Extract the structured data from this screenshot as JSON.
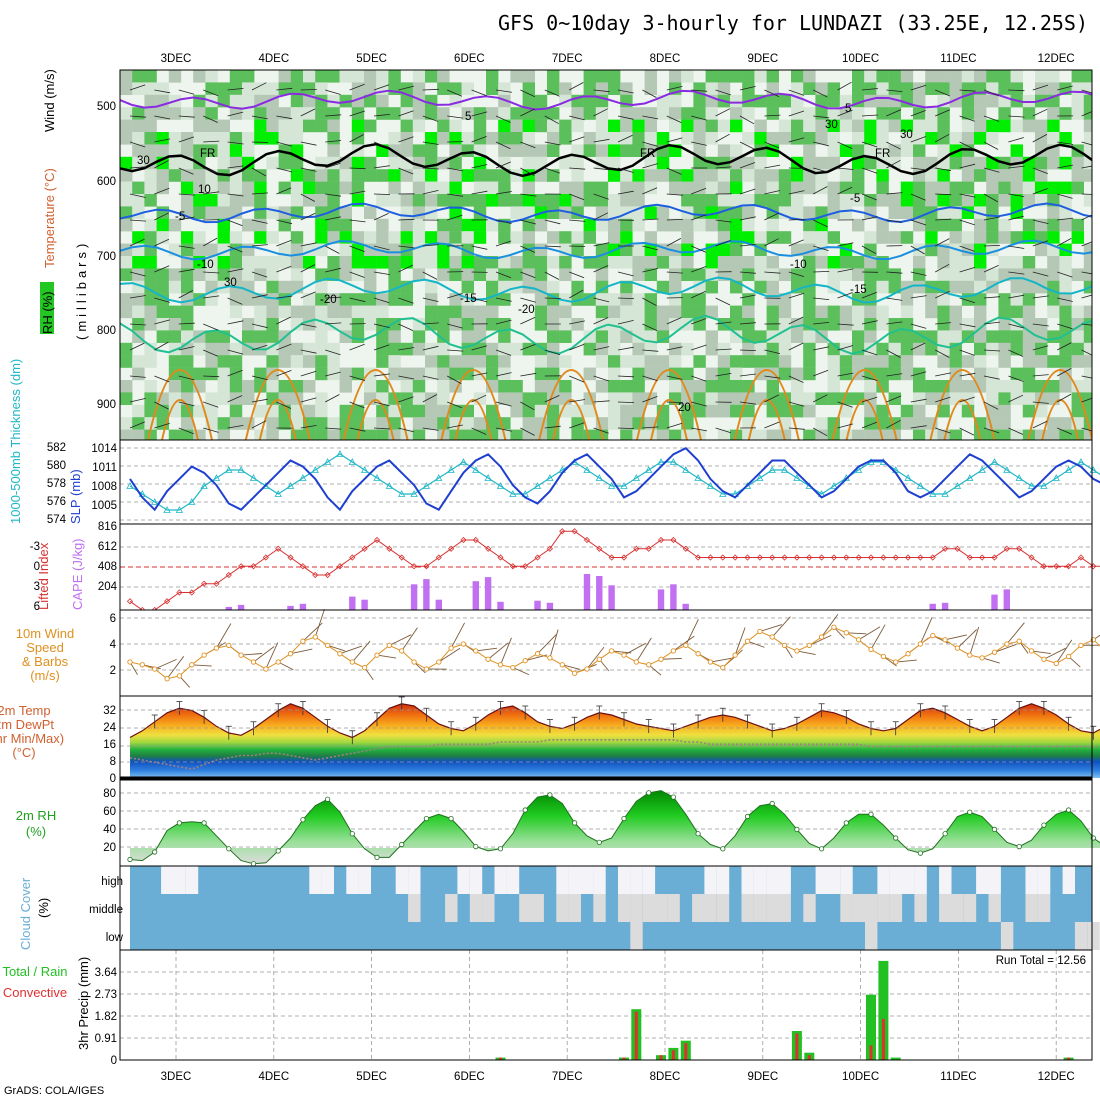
{
  "title": "GFS 0~10day 3-hourly for LUNDAZI (33.25E, 12.25S)",
  "credit": "GrADS: COLA/IGES",
  "run_total": "Run Total = 12.56",
  "dates": [
    "3DEC",
    "4DEC",
    "5DEC",
    "6DEC",
    "7DEC",
    "8DEC",
    "9DEC",
    "10DEC",
    "11DEC",
    "12DEC"
  ],
  "colors": {
    "rh_green": "#22c722",
    "rh_bright": "#00ee00",
    "temp_purple": "#8a2be2",
    "temp_blue": "#1e5fe0",
    "temp_cyan": "#15b5c8",
    "temp_orange": "#e08a1e",
    "slp": "#1e3fd0",
    "thickness": "#20b8c8",
    "lifted_index": "#d83030",
    "cape": "#c070f0",
    "wind10": "#e09020",
    "cloud_blue": "#6aaed6",
    "cloud_white": "#f4f4f8",
    "cloud_gray": "#dcdcdc",
    "precip_total": "#22c022",
    "precip_conv": "#e03030"
  },
  "panels": {
    "upper": {
      "ylabel_parts": [
        "RH (%)",
        "Temperature (°C)",
        "Wind (m/s)"
      ],
      "yaxis_label": "(millibars)",
      "yticks": [
        "500",
        "600",
        "700",
        "800",
        "900"
      ],
      "contour_labels": [
        "5",
        "5",
        "FR",
        "FR",
        "FR",
        "-5",
        "-5",
        "-10",
        "-10",
        "-15",
        "-15",
        "-20",
        "-20",
        "20",
        "30",
        "30",
        "30",
        "30",
        "10"
      ]
    },
    "slp_thick": {
      "ylabel_left": "1000-500mb Thickness (dm)",
      "ylabel_right": "SLP (mb)",
      "yticks_left": [
        "582",
        "580",
        "578",
        "576",
        "574"
      ],
      "yticks_right": [
        "1014",
        "1011",
        "1008",
        "1005"
      ]
    },
    "cape_li": {
      "ylabel_left": "Lifted Index",
      "ylabel_right": "CAPE (J/kg)",
      "yticks_left": [
        "-3",
        "0",
        "3",
        "6"
      ],
      "yticks_right": [
        "816",
        "612",
        "408",
        "204"
      ]
    },
    "wind10": {
      "ylabel_lines": [
        "10m Wind",
        "Speed",
        "& Barbs",
        "(m/s)"
      ],
      "yticks": [
        "6",
        "4",
        "2"
      ]
    },
    "temp2m": {
      "ylabel_lines": [
        "2m Temp",
        "2m DewPt",
        "(6hr Min/Max)",
        "(°C)"
      ],
      "yticks": [
        "32",
        "24",
        "16",
        "8",
        "0"
      ]
    },
    "rh2m": {
      "ylabel_lines": [
        "2m RH",
        "(%)"
      ],
      "yticks": [
        "80",
        "60",
        "40",
        "20"
      ]
    },
    "cloud": {
      "ylabel_lines": [
        "Cloud Cover",
        "(%)"
      ],
      "levels": [
        "high",
        "middle",
        "low"
      ]
    },
    "precip": {
      "ylabel_lines": [
        "Total / Rain",
        "Convective",
        "3hr Precip (mm)"
      ],
      "yticks": [
        "3.64",
        "2.73",
        "1.82",
        "0.91",
        "0"
      ]
    }
  },
  "chart_data": {
    "type": "line",
    "x_times_3h": "2 Dec 12Z to 12 Dec 09Z, 3-hourly (81 steps)",
    "slp_mb": [
      1010,
      1007,
      1005,
      1008,
      1010,
      1012,
      1011,
      1009,
      1006,
      1005,
      1007,
      1009,
      1011,
      1013,
      1012,
      1010,
      1007,
      1005,
      1008,
      1010,
      1012,
      1013,
      1011,
      1009,
      1006,
      1005,
      1008,
      1011,
      1013,
      1014,
      1012,
      1009,
      1007,
      1006,
      1008,
      1011,
      1013,
      1014,
      1012,
      1010,
      1007,
      1008,
      1010,
      1012,
      1014,
      1015,
      1013,
      1010,
      1008,
      1007,
      1009,
      1011,
      1013,
      1013,
      1011,
      1009,
      1007,
      1008,
      1010,
      1012,
      1013,
      1013,
      1011,
      1008,
      1007,
      1008,
      1010,
      1012,
      1014,
      1013,
      1011,
      1009,
      1007,
      1008,
      1010,
      1012,
      1013,
      1012,
      1010,
      1009,
      1010
    ],
    "thickness_dm": [
      578,
      577,
      576,
      575,
      575,
      576,
      578,
      579,
      580,
      580,
      579,
      578,
      577,
      578,
      579,
      580,
      581,
      582,
      581,
      580,
      579,
      578,
      577,
      577,
      578,
      579,
      580,
      581,
      580,
      579,
      578,
      577,
      577,
      578,
      579,
      580,
      581,
      580,
      579,
      578,
      578,
      579,
      580,
      581,
      581,
      580,
      579,
      578,
      577,
      577,
      578,
      579,
      580,
      580,
      579,
      578,
      577,
      578,
      579,
      580,
      581,
      581,
      580,
      579,
      578,
      577,
      577,
      578,
      579,
      580,
      581,
      580,
      579,
      578,
      578,
      579,
      580,
      581,
      580,
      579,
      579
    ],
    "cape_jkg": [
      0,
      0,
      0,
      0,
      0,
      0,
      0,
      0,
      30,
      50,
      0,
      0,
      0,
      40,
      60,
      0,
      0,
      0,
      130,
      100,
      0,
      0,
      0,
      250,
      300,
      100,
      0,
      0,
      280,
      320,
      80,
      0,
      0,
      90,
      70,
      0,
      0,
      350,
      330,
      240,
      0,
      0,
      0,
      200,
      250,
      60,
      0,
      0,
      0,
      0,
      0,
      0,
      0,
      0,
      0,
      0,
      0,
      0,
      0,
      0,
      0,
      0,
      0,
      0,
      0,
      60,
      70,
      0,
      0,
      0,
      150,
      200,
      0,
      0,
      0,
      0,
      0,
      0,
      0,
      0,
      100
    ],
    "lifted_index": [
      5,
      6,
      6,
      5,
      4,
      4,
      3,
      3,
      2,
      1,
      1,
      0,
      -1,
      0,
      1,
      2,
      2,
      1,
      0,
      -1,
      -2,
      -1,
      0,
      1,
      1,
      0,
      -1,
      -2,
      -2,
      -1,
      0,
      1,
      1,
      0,
      -1,
      -3,
      -3,
      -2,
      -1,
      0,
      0,
      -1,
      -1,
      -2,
      -2,
      -1,
      0,
      0,
      0,
      0,
      0,
      0,
      0,
      0,
      0,
      0,
      0,
      0,
      0,
      0,
      0,
      0,
      0,
      0,
      0,
      0,
      -1,
      -1,
      0,
      0,
      0,
      -1,
      -1,
      0,
      1,
      1,
      1,
      0,
      1,
      1,
      -1
    ],
    "wind10_ms": [
      3,
      2.8,
      2.5,
      1.8,
      2,
      2.8,
      3.5,
      4,
      4.2,
      3.5,
      3,
      2.5,
      3,
      3.6,
      4.5,
      4.8,
      4.2,
      3.6,
      3,
      2.6,
      3.5,
      4.2,
      3.8,
      3,
      2.5,
      3,
      4,
      4.3,
      3.8,
      3.2,
      2.8,
      2.6,
      3.1,
      3.6,
      3.3,
      2.8,
      2.2,
      2.5,
      3.2,
      3.8,
      3.5,
      3,
      2.8,
      3.2,
      3.8,
      4.2,
      3.6,
      3,
      2.6,
      3.5,
      4.5,
      5.2,
      4.8,
      4.2,
      3.8,
      4.2,
      4.8,
      5.5,
      5.1,
      4.6,
      3.9,
      3.4,
      3,
      3.6,
      4.3,
      4.9,
      4.6,
      4,
      3.5,
      3.3,
      3.7,
      4.3,
      4.5,
      3.8,
      3.2,
      2.9,
      3.4,
      4.2,
      4.6,
      3.8,
      3.1
    ],
    "temp2m_c": [
      18,
      21,
      25,
      29,
      31,
      30,
      27,
      23,
      20,
      19,
      22,
      26,
      30,
      33,
      31,
      27,
      23,
      20,
      18,
      21,
      26,
      31,
      33,
      32,
      28,
      24,
      22,
      21,
      24,
      28,
      31,
      32,
      29,
      25,
      23,
      22,
      24,
      27,
      29,
      28,
      26,
      24,
      23,
      22,
      21,
      23,
      25,
      27,
      28,
      27,
      25,
      23,
      21,
      22,
      24,
      27,
      30,
      29,
      27,
      24,
      22,
      21,
      22,
      26,
      30,
      31,
      29,
      26,
      23,
      21,
      23,
      27,
      31,
      33,
      31,
      28,
      24,
      21,
      20,
      23,
      27
    ],
    "dewpt2m_c": [
      9,
      8,
      7,
      6,
      5,
      4,
      6,
      8,
      9,
      10,
      10,
      11,
      11,
      10,
      9,
      8,
      9,
      10,
      11,
      12,
      13,
      14,
      14,
      14,
      14,
      15,
      15,
      15,
      15,
      15,
      16,
      16,
      16,
      16,
      17,
      17,
      17,
      17,
      17,
      17,
      17,
      17,
      17,
      17,
      17,
      16,
      16,
      15,
      15,
      15,
      15,
      15,
      15,
      15,
      15,
      15,
      15,
      15,
      15,
      15,
      14,
      14,
      14,
      14,
      14,
      14,
      14,
      14,
      14,
      14,
      14,
      14,
      14,
      14,
      14,
      14,
      14,
      14,
      14,
      14,
      14
    ],
    "rh2m_pct": [
      18,
      17,
      25,
      45,
      52,
      53,
      52,
      40,
      28,
      17,
      14,
      15,
      26,
      38,
      55,
      68,
      74,
      62,
      42,
      28,
      20,
      20,
      32,
      44,
      56,
      60,
      56,
      44,
      30,
      26,
      28,
      42,
      64,
      76,
      78,
      70,
      52,
      40,
      34,
      38,
      56,
      72,
      80,
      82,
      76,
      60,
      42,
      32,
      28,
      40,
      58,
      68,
      70,
      60,
      46,
      33,
      28,
      38,
      52,
      60,
      60,
      50,
      38,
      27,
      24,
      28,
      42,
      58,
      62,
      58,
      46,
      34,
      30,
      36,
      50,
      60,
      64,
      54,
      38,
      30,
      38
    ],
    "precip_total_mm": [
      0,
      0,
      0,
      0,
      0,
      0,
      0,
      0,
      0,
      0,
      0,
      0,
      0,
      0,
      0,
      0,
      0,
      0,
      0,
      0,
      0,
      0,
      0,
      0,
      0,
      0,
      0,
      0,
      0,
      0,
      0.1,
      0,
      0,
      0,
      0,
      0,
      0,
      0,
      0,
      0,
      0.1,
      2.1,
      0,
      0.2,
      0.5,
      0.8,
      0,
      0,
      0,
      0,
      0,
      0,
      0,
      0,
      1.2,
      0.3,
      0,
      0,
      0,
      0,
      2.7,
      4.1,
      0.1,
      0,
      0,
      0,
      0,
      0,
      0,
      0,
      0,
      0,
      0,
      0,
      0,
      0,
      0.1,
      0,
      0,
      0,
      0
    ],
    "precip_convective_mm": [
      0,
      0,
      0,
      0,
      0,
      0,
      0,
      0,
      0,
      0,
      0,
      0,
      0,
      0,
      0,
      0,
      0,
      0,
      0,
      0,
      0,
      0,
      0,
      0,
      0,
      0,
      0,
      0,
      0,
      0,
      0.1,
      0,
      0,
      0,
      0,
      0,
      0,
      0,
      0,
      0,
      0.1,
      2.0,
      0,
      0.2,
      0.4,
      0.7,
      0,
      0,
      0,
      0,
      0,
      0,
      0,
      0,
      1.1,
      0.2,
      0,
      0,
      0,
      0,
      0.6,
      1.7,
      0,
      0,
      0,
      0,
      0,
      0,
      0,
      0,
      0,
      0,
      0,
      0,
      0,
      0,
      0.1,
      0,
      0,
      0,
      0
    ],
    "cloud_high": [
      0,
      0,
      0,
      1,
      1,
      1,
      0,
      0,
      0,
      0,
      0,
      0,
      0,
      0,
      0,
      1,
      1,
      0,
      1,
      1,
      0,
      0,
      1,
      1,
      0,
      0,
      0,
      1,
      1,
      0,
      1,
      1,
      0,
      0,
      0,
      1,
      1,
      1,
      1,
      0,
      1,
      1,
      1,
      0,
      0,
      0,
      0,
      1,
      1,
      0,
      1,
      1,
      1,
      1,
      0,
      0,
      1,
      1,
      1,
      0,
      0,
      1,
      1,
      1,
      1,
      0,
      1,
      0,
      0,
      1,
      1,
      0,
      0,
      1,
      1,
      0,
      1,
      0,
      0,
      0,
      0
    ],
    "cloud_middle": [
      0,
      0,
      0,
      0,
      0,
      0,
      0,
      0,
      0,
      0,
      0,
      0,
      0,
      0,
      0,
      0,
      0,
      0,
      0,
      0,
      0,
      0,
      0,
      1,
      0,
      0,
      1,
      0,
      1,
      1,
      0,
      0,
      1,
      1,
      0,
      1,
      1,
      0,
      1,
      0,
      1,
      1,
      1,
      1,
      1,
      0,
      1,
      1,
      1,
      0,
      1,
      1,
      1,
      1,
      0,
      1,
      0,
      0,
      1,
      1,
      1,
      1,
      1,
      0,
      1,
      0,
      1,
      1,
      1,
      0,
      1,
      0,
      0,
      1,
      1,
      0,
      0,
      0,
      0,
      0,
      0
    ],
    "cloud_low": [
      0,
      0,
      0,
      0,
      0,
      0,
      0,
      0,
      0,
      0,
      0,
      0,
      0,
      0,
      0,
      0,
      0,
      0,
      0,
      0,
      0,
      0,
      0,
      0,
      0,
      0,
      0,
      0,
      0,
      0,
      0,
      0,
      0,
      0,
      0,
      0,
      0,
      0,
      0,
      0,
      0,
      1,
      0,
      0,
      0,
      0,
      0,
      0,
      0,
      0,
      0,
      0,
      0,
      0,
      0,
      0,
      0,
      0,
      0,
      0,
      1,
      0,
      0,
      0,
      0,
      0,
      0,
      0,
      0,
      0,
      0,
      1,
      0,
      0,
      0,
      0,
      0,
      1,
      1,
      0,
      0
    ]
  }
}
